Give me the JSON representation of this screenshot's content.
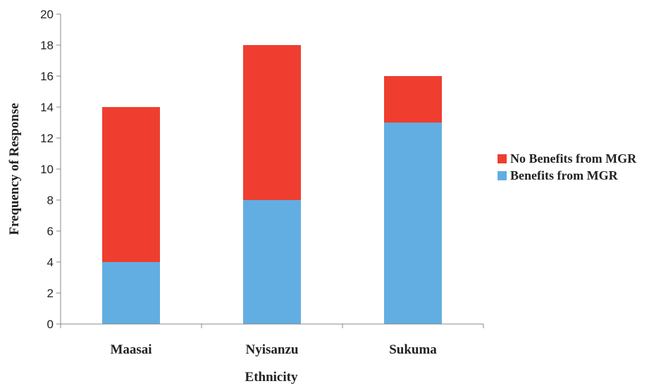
{
  "chart_data": {
    "type": "bar",
    "stacked": true,
    "title": "",
    "xlabel": "Ethnicity",
    "ylabel": "Frequency of Response",
    "ylim": [
      0,
      20
    ],
    "yticks": [
      0,
      2,
      4,
      6,
      8,
      10,
      12,
      14,
      16,
      18,
      20
    ],
    "grid": false,
    "legend_position": "right",
    "categories": [
      "Maasai",
      "Nyisanzu",
      "Sukuma"
    ],
    "series": [
      {
        "name": "Benefits from MGR",
        "values": [
          4,
          8,
          13
        ],
        "color": "#62aee2"
      },
      {
        "name": "No Benefits from MGR",
        "values": [
          10,
          10,
          3
        ],
        "color": "#ef3e2f"
      }
    ],
    "legend_order": [
      "No Benefits from MGR",
      "Benefits from MGR"
    ]
  }
}
